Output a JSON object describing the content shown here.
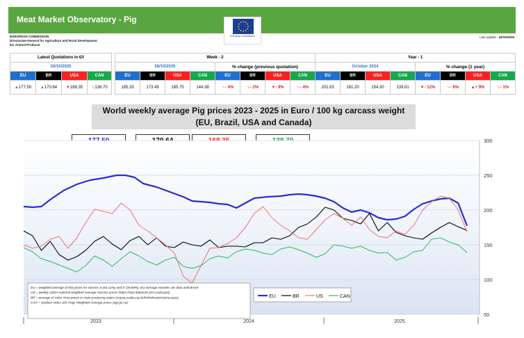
{
  "header": {
    "title": "Meat Market Observatory - Pig",
    "logo_caption": "European Commission",
    "org_lines": [
      "EUROPEAN COMMISSION",
      "Directorate-General for Agriculture and Rural Development",
      "E3. Animal Products"
    ],
    "update_label": "Last update :",
    "update_date": "29/10/2025"
  },
  "quotations": {
    "latest_title": "Latest Quotations in €/t",
    "week_title": "Week - 2",
    "year_title": "Year - 1",
    "pct_prev_title": "% change (previous quotation)",
    "pct_year_title": "% change (1 year)",
    "latest_date": "20/10/2025",
    "week_date": "06/10/2025",
    "year_date": "October 2024",
    "regions": [
      "EU",
      "BR",
      "USA",
      "CAN"
    ],
    "latest_values": [
      "177.50",
      "170.64",
      "168.35",
      "138.70"
    ],
    "latest_arrows": [
      "up",
      "up",
      "down",
      "flat"
    ],
    "week_values": [
      "185.33",
      "173.49",
      "185.75",
      "144.38"
    ],
    "pct_prev": [
      "- 4%",
      "- 2%",
      "- 9%",
      "- 4%"
    ],
    "pct_prev_arrows": [
      "flat",
      "flat",
      "down",
      "flat"
    ],
    "year_values": [
      "202.63",
      "181.20",
      "154.30",
      "139.81"
    ],
    "pct_year": [
      "- 12%",
      "- 6%",
      "+ 9%",
      "- 1%"
    ],
    "pct_year_arrows": [
      "down",
      "flat",
      "up",
      "flat"
    ]
  },
  "chart_data": {
    "type": "line",
    "title": "World weekly average Pig prices 2023 - 2025  in Euro / 100 kg carcass weight",
    "subtitle": "(EU, Brazil, USA and Canada)",
    "y_ticks": [
      "300",
      "250",
      "200",
      "150",
      "100",
      "50"
    ],
    "ylim": [
      50,
      300
    ],
    "x_years": [
      "2023",
      "2024",
      "2025"
    ],
    "price_boxes": [
      {
        "value": "177.50",
        "color": "#2b2bd6"
      },
      {
        "value": "170.64",
        "color": "#000000"
      },
      {
        "value": "168.35",
        "color": "#ff1f1f"
      },
      {
        "value": "138.70",
        "color": "#17a84b"
      }
    ],
    "legend": [
      "EU",
      "BR",
      "US",
      "CAN"
    ],
    "notes": [
      "EU   = weighted average of MS prices for classes S (64.12%) and E (35.88%). EU average includes UK data  until Brexit",
      "US   = weekly USDA national weighted average carcass prices (https://mpr.datamart.ams.usda.gov)",
      "BR   = average of Valor Vista prices in main producing states (cepea.esalq.usp.br/br/indicador/suino.aspx)",
      "CAN = Quebec Index 100 Hogs Weighted Average prices (agr.gc.ca)"
    ],
    "series": [
      {
        "name": "EU",
        "color": "#2b2bd6",
        "x": [
          0.0,
          0.02,
          0.04,
          0.06,
          0.09,
          0.12,
          0.15,
          0.18,
          0.21,
          0.23,
          0.25,
          0.27,
          0.3,
          0.33,
          0.36,
          0.38,
          0.4,
          0.42,
          0.44,
          0.46,
          0.48,
          0.5,
          0.52,
          0.55,
          0.58,
          0.6,
          0.62,
          0.64,
          0.66,
          0.68,
          0.7,
          0.72,
          0.74,
          0.76,
          0.78,
          0.8,
          0.82,
          0.84,
          0.86,
          0.88,
          0.9,
          0.92,
          0.94,
          0.96,
          0.98,
          1.0
        ],
        "y": [
          205,
          204,
          205,
          215,
          228,
          237,
          243,
          246,
          250,
          250,
          247,
          238,
          233,
          226,
          219,
          213,
          212,
          211,
          209,
          208,
          203,
          210,
          217,
          219,
          220,
          222,
          223,
          222,
          220,
          217,
          212,
          203,
          197,
          200,
          196,
          189,
          186,
          187,
          191,
          201,
          209,
          213,
          216,
          217,
          210,
          177.5
        ]
      },
      {
        "name": "BR",
        "color": "#000000",
        "x": [
          0.0,
          0.02,
          0.04,
          0.06,
          0.08,
          0.1,
          0.12,
          0.14,
          0.16,
          0.18,
          0.2,
          0.22,
          0.24,
          0.26,
          0.28,
          0.3,
          0.32,
          0.34,
          0.36,
          0.38,
          0.4,
          0.42,
          0.44,
          0.46,
          0.48,
          0.5,
          0.52,
          0.54,
          0.56,
          0.58,
          0.6,
          0.62,
          0.64,
          0.66,
          0.68,
          0.7,
          0.72,
          0.74,
          0.76,
          0.78,
          0.8,
          0.82,
          0.84,
          0.86,
          0.88,
          0.9,
          0.92,
          0.94,
          0.96,
          0.98,
          1.0
        ],
        "y": [
          170,
          163,
          142,
          155,
          136,
          128,
          133,
          142,
          155,
          162,
          151,
          143,
          156,
          162,
          150,
          160,
          148,
          146,
          154,
          150,
          148,
          157,
          146,
          148,
          148,
          147,
          153,
          153,
          160,
          158,
          163,
          175,
          180,
          190,
          204,
          200,
          188,
          185,
          180,
          195,
          170,
          182,
          168,
          163,
          160,
          158,
          167,
          175,
          182,
          176,
          170.6
        ]
      },
      {
        "name": "US",
        "color": "#f07070",
        "x": [
          0.0,
          0.02,
          0.04,
          0.06,
          0.08,
          0.1,
          0.12,
          0.14,
          0.16,
          0.18,
          0.2,
          0.22,
          0.24,
          0.26,
          0.28,
          0.3,
          0.32,
          0.34,
          0.36,
          0.38,
          0.4,
          0.42,
          0.44,
          0.46,
          0.48,
          0.5,
          0.52,
          0.54,
          0.56,
          0.58,
          0.6,
          0.62,
          0.64,
          0.66,
          0.68,
          0.7,
          0.72,
          0.74,
          0.76,
          0.78,
          0.8,
          0.82,
          0.84,
          0.86,
          0.88,
          0.9,
          0.92,
          0.94,
          0.96,
          0.98,
          1.0
        ],
        "y": [
          150,
          145,
          148,
          158,
          162,
          145,
          160,
          182,
          201,
          198,
          195,
          210,
          200,
          178,
          170,
          160,
          150,
          138,
          105,
          95,
          120,
          145,
          146,
          152,
          160,
          175,
          195,
          205,
          189,
          178,
          170,
          160,
          158,
          172,
          186,
          195,
          188,
          178,
          190,
          172,
          162,
          160,
          170,
          165,
          178,
          200,
          212,
          220,
          217,
          200,
          168.4
        ]
      },
      {
        "name": "CAN",
        "color": "#2eb85c",
        "x": [
          0.0,
          0.02,
          0.04,
          0.06,
          0.08,
          0.1,
          0.12,
          0.14,
          0.16,
          0.18,
          0.2,
          0.22,
          0.24,
          0.26,
          0.28,
          0.3,
          0.32,
          0.34,
          0.36,
          0.38,
          0.4,
          0.42,
          0.44,
          0.46,
          0.48,
          0.5,
          0.52,
          0.54,
          0.56,
          0.58,
          0.6,
          0.62,
          0.64,
          0.66,
          0.68,
          0.7,
          0.72,
          0.74,
          0.76,
          0.78,
          0.8,
          0.82,
          0.84,
          0.86,
          0.88,
          0.9,
          0.92,
          0.94,
          0.96,
          0.98,
          1.0
        ],
        "y": [
          146,
          140,
          130,
          126,
          121,
          116,
          111,
          120,
          134,
          128,
          119,
          130,
          140,
          134,
          126,
          121,
          128,
          132,
          119,
          116,
          120,
          130,
          134,
          131,
          140,
          144,
          142,
          138,
          136,
          144,
          147,
          143,
          138,
          132,
          137,
          150,
          148,
          145,
          148,
          142,
          138,
          139,
          128,
          132,
          140,
          142,
          158,
          160,
          154,
          150,
          138.7
        ]
      }
    ]
  }
}
